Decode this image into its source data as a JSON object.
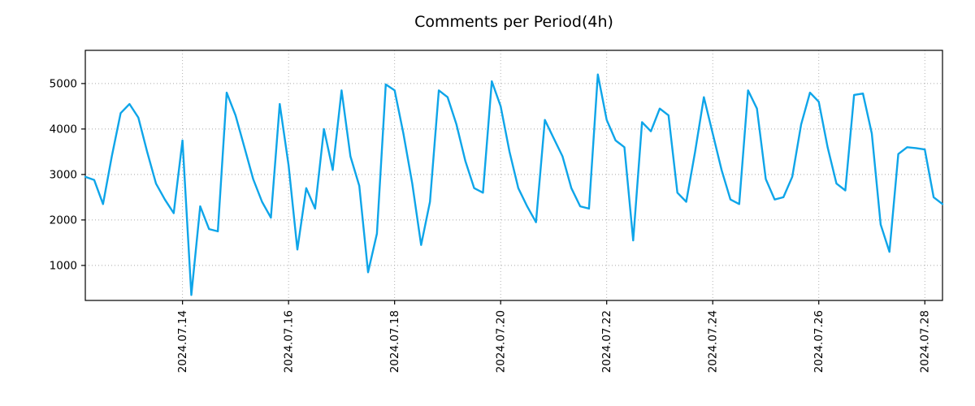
{
  "title": "Comments per Period(4h)",
  "chart_data": {
    "type": "line",
    "title": "Comments per Period(4h)",
    "series_name": "comments",
    "line_color": "#0ea5e9",
    "grid": true,
    "legend": "none",
    "x_tick_labels": [
      "2024.07.14",
      "2024.07.16",
      "2024.07.18",
      "2024.07.20",
      "2024.07.22",
      "2024.07.24",
      "2024.07.26",
      "2024.07.28"
    ],
    "x_tick_indices": [
      11,
      23,
      35,
      47,
      59,
      71,
      83,
      95
    ],
    "y_tick_labels": [
      "1000",
      "2000",
      "3000",
      "4000",
      "5000"
    ],
    "y_ticks": [
      1000,
      2000,
      3000,
      4000,
      5000
    ],
    "ylim": [
      230,
      5730
    ],
    "values": [
      2950,
      2880,
      2350,
      3400,
      4350,
      4550,
      4250,
      3500,
      2800,
      2450,
      2150,
      3750,
      350,
      2300,
      1800,
      1750,
      4800,
      4300,
      3600,
      2900,
      2400,
      2050,
      4550,
      3200,
      1350,
      2700,
      2250,
      4000,
      3100,
      4850,
      3400,
      2750,
      850,
      1700,
      4980,
      4850,
      3900,
      2800,
      1450,
      2400,
      4850,
      4700,
      4100,
      3300,
      2700,
      2600,
      5050,
      4500,
      3500,
      2700,
      2300,
      1950,
      4200,
      3800,
      3400,
      2700,
      2300,
      2250,
      5200,
      4200,
      3750,
      3600,
      1550,
      4150,
      3950,
      4450,
      4300,
      2600,
      2400,
      3500,
      4700,
      3900,
      3100,
      2450,
      2350,
      4850,
      4450,
      2900,
      2450,
      2500,
      2950,
      4100,
      4800,
      4600,
      3600,
      2800,
      2650,
      4750,
      4780,
      3900,
      1900,
      1300,
      3450,
      3600,
      3580,
      3550,
      2500,
      2350
    ]
  }
}
